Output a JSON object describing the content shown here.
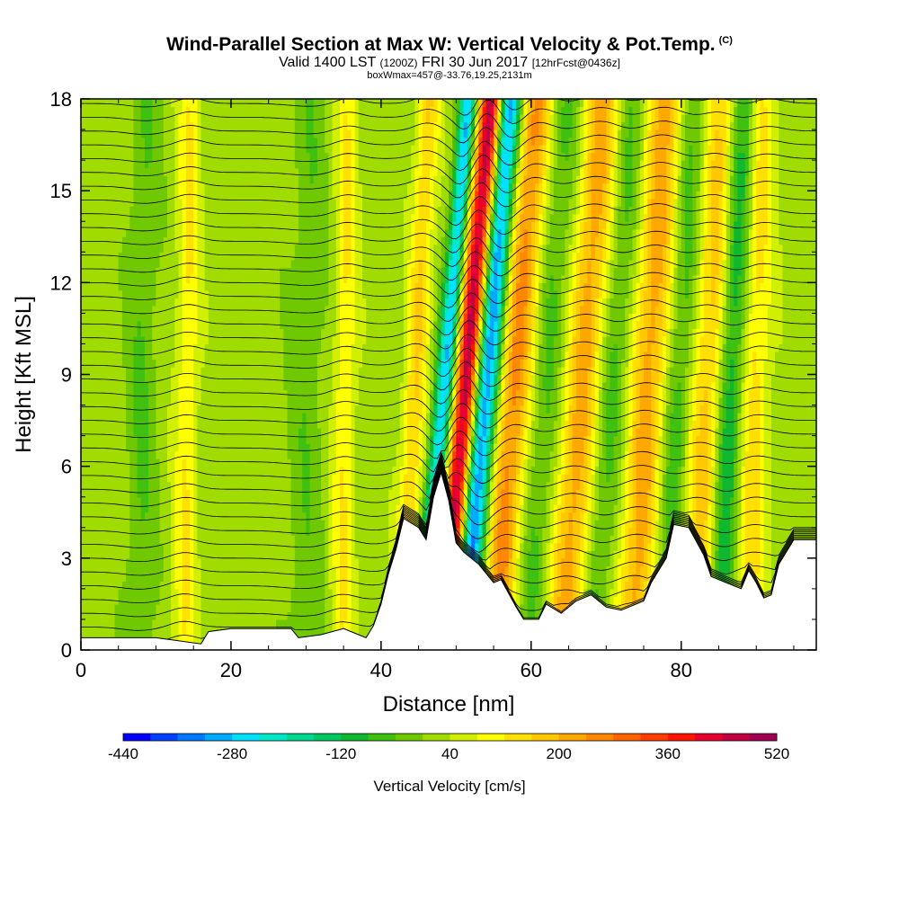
{
  "header": {
    "title": "Wind-Parallel Section at Max W: Vertical Velocity & Pot.Temp.",
    "copyright": "(C)",
    "valid_prefix": "Valid 1400 LST",
    "valid_utc": "(1200Z)",
    "valid_date": "FRI 30 Jun 2017",
    "forecast": "[12hrFcst@0436z]",
    "box_info": "boxWmax=457@-33.76,19.25,2131m"
  },
  "chart_data": {
    "type": "heatmap",
    "title": "Wind-Parallel Section at Max W: Vertical Velocity & Pot.Temp.",
    "xlabel": "Distance [nm]",
    "ylabel": "Height [Kft MSL]",
    "xlim": [
      0,
      98
    ],
    "ylim": [
      0,
      18
    ],
    "x_ticks": [
      0,
      20,
      40,
      60,
      80
    ],
    "y_ticks": [
      0,
      3,
      6,
      9,
      12,
      15,
      18
    ],
    "colorbar": {
      "title": "Vertical Velocity [cm/s]",
      "min": -440,
      "max": 520,
      "step": 40,
      "tick_labels": [
        "-440",
        "-280",
        "-120",
        "40",
        "200",
        "360",
        "520"
      ],
      "colors": [
        "#0000ff",
        "#0040ff",
        "#0078ff",
        "#00aaff",
        "#00e0ff",
        "#00e8c8",
        "#00d890",
        "#00c860",
        "#10b830",
        "#40c010",
        "#70c800",
        "#a0dc00",
        "#d0f000",
        "#ffff00",
        "#ffe000",
        "#ffc800",
        "#ffa800",
        "#ff8800",
        "#ff6400",
        "#ff3c00",
        "#ff1400",
        "#e80030",
        "#c00040",
        "#a00050"
      ]
    },
    "contour_field": "Potential Temperature",
    "terrain_profile_kft": [
      [
        0,
        0.4
      ],
      [
        10,
        0.4
      ],
      [
        13,
        0.3
      ],
      [
        16,
        0.2
      ],
      [
        17,
        0.6
      ],
      [
        20,
        0.7
      ],
      [
        28,
        0.7
      ],
      [
        29,
        0.4
      ],
      [
        32,
        0.5
      ],
      [
        35,
        0.7
      ],
      [
        37,
        0.5
      ],
      [
        38,
        0.4
      ],
      [
        39,
        0.8
      ],
      [
        40,
        1.5
      ],
      [
        41,
        2.5
      ],
      [
        42,
        3.3
      ],
      [
        43,
        4.3
      ],
      [
        45,
        4.0
      ],
      [
        46,
        3.6
      ],
      [
        47,
        5.0
      ],
      [
        48,
        5.8
      ],
      [
        49,
        4.9
      ],
      [
        50,
        3.5
      ],
      [
        51,
        3.2
      ],
      [
        53,
        2.8
      ],
      [
        55,
        2.2
      ],
      [
        56,
        2.3
      ],
      [
        58,
        1.4
      ],
      [
        59,
        1.0
      ],
      [
        61,
        1.0
      ],
      [
        62,
        1.5
      ],
      [
        64,
        1.2
      ],
      [
        66,
        1.6
      ],
      [
        68,
        1.8
      ],
      [
        70,
        1.4
      ],
      [
        72,
        1.3
      ],
      [
        75,
        1.6
      ],
      [
        76,
        2.2
      ],
      [
        78,
        3.0
      ],
      [
        79,
        4.1
      ],
      [
        81,
        4.0
      ],
      [
        83,
        3.1
      ],
      [
        84,
        2.4
      ],
      [
        86,
        2.2
      ],
      [
        88,
        2.0
      ],
      [
        89,
        2.6
      ],
      [
        90,
        2.2
      ],
      [
        91,
        1.7
      ],
      [
        92,
        1.8
      ],
      [
        93,
        2.8
      ],
      [
        95,
        3.6
      ],
      [
        98,
        3.6
      ]
    ],
    "vertical_velocity_bands": [
      {
        "center_nm": 50.5,
        "w_cm_s": 480,
        "lean_nm_per_kft": 0.35,
        "width_nm": 1.6
      },
      {
        "center_nm": 53.0,
        "w_cm_s": -380,
        "lean_nm_per_kft": 0.35,
        "width_nm": 1.8
      },
      {
        "center_nm": 47.5,
        "w_cm_s": -300,
        "lean_nm_per_kft": 0.35,
        "width_nm": 1.2
      },
      {
        "center_nm": 57.0,
        "w_cm_s": 240,
        "lean_nm_per_kft": 0.3,
        "width_nm": 2.5
      },
      {
        "center_nm": 61.0,
        "w_cm_s": -80,
        "lean_nm_per_kft": 0.3,
        "width_nm": 2.5
      },
      {
        "center_nm": 66.0,
        "w_cm_s": 200,
        "lean_nm_per_kft": 0.3,
        "width_nm": 2.5
      },
      {
        "center_nm": 70.0,
        "w_cm_s": -80,
        "lean_nm_per_kft": 0.3,
        "width_nm": 2.0
      },
      {
        "center_nm": 75.0,
        "w_cm_s": 200,
        "lean_nm_per_kft": 0.25,
        "width_nm": 2.5
      },
      {
        "center_nm": 79.0,
        "w_cm_s": -100,
        "lean_nm_per_kft": 0.25,
        "width_nm": 2.0
      },
      {
        "center_nm": 83.0,
        "w_cm_s": 160,
        "lean_nm_per_kft": 0.2,
        "width_nm": 2.5
      },
      {
        "center_nm": 86.0,
        "w_cm_s": -160,
        "lean_nm_per_kft": 0.2,
        "width_nm": 1.8
      },
      {
        "center_nm": 89.5,
        "w_cm_s": 120,
        "lean_nm_per_kft": 0.1,
        "width_nm": 2.0
      },
      {
        "center_nm": 14.0,
        "w_cm_s": 100,
        "lean_nm_per_kft": 0.05,
        "width_nm": 1.5
      },
      {
        "center_nm": 35.0,
        "w_cm_s": 100,
        "lean_nm_per_kft": 0.05,
        "width_nm": 1.5
      },
      {
        "center_nm": 8.0,
        "w_cm_s": -60,
        "lean_nm_per_kft": 0.05,
        "width_nm": 2.0
      },
      {
        "center_nm": 30.0,
        "w_cm_s": -50,
        "lean_nm_per_kft": 0.05,
        "width_nm": 2.5
      },
      {
        "center_nm": 44.0,
        "w_cm_s": 140,
        "lean_nm_per_kft": 0.2,
        "width_nm": 1.5
      }
    ]
  }
}
